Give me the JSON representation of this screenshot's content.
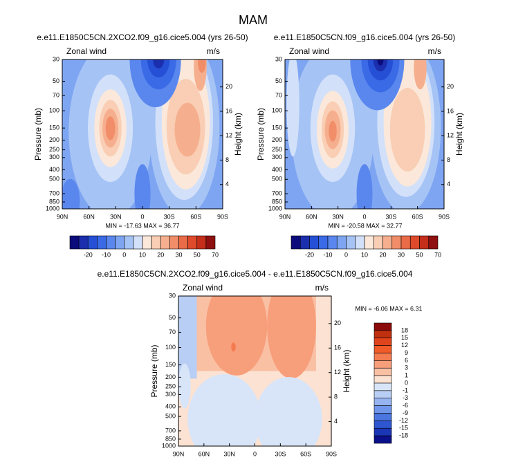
{
  "title": "MAM",
  "chart_data": [
    {
      "type": "contour",
      "title": "e.e11.E1850C5CN.2XCO2.f09_g16.cice5.004 (yrs 26-50)",
      "left_label": "Zonal wind",
      "right_label": "m/s",
      "ylabel": "Pressure (mb)",
      "y2label": "Height (km)",
      "stats_text": "MIN = -17.63  MAX = 36.77",
      "xlim": [
        90,
        -90
      ],
      "xticks": [
        {
          "value": 90,
          "label": "90N"
        },
        {
          "value": 60,
          "label": "60N"
        },
        {
          "value": 30,
          "label": "30N"
        },
        0,
        {
          "value": -30,
          "label": "30S"
        },
        {
          "value": -60,
          "label": "60S"
        },
        {
          "value": -90,
          "label": "90S"
        }
      ],
      "ylim": [
        1000,
        30
      ],
      "log_y": true,
      "yticks": [
        30,
        50,
        70,
        100,
        150,
        200,
        250,
        300,
        400,
        500,
        700,
        850,
        1000
      ],
      "y2lim": [
        0,
        24.5
      ],
      "y2ticks": [
        4,
        8,
        12,
        16,
        20
      ],
      "colorbar": {
        "orientation": "horizontal",
        "colors": [
          "#0b0b7c",
          "#1b2fae",
          "#2550d6",
          "#3a6ae6",
          "#5a87ee",
          "#7ea5f2",
          "#a6c3f5",
          "#d2e1f9",
          "#fbe8da",
          "#f9ceb4",
          "#f6af8e",
          "#f18e69",
          "#ea6b47",
          "#de4a2b",
          "#c42e1b",
          "#8e1010"
        ],
        "labels": [
          -20,
          -10,
          0,
          10,
          20,
          30,
          50,
          70
        ]
      }
    },
    {
      "type": "contour",
      "title": "e.e11.E1850C5CN.f09_g16.cice5.004 (yrs 26-50)",
      "left_label": "Zonal wind",
      "right_label": "m/s",
      "ylabel": "Pressure (mb)",
      "y2label": "Height (km)",
      "stats_text": "MIN = -20.58  MAX = 32.77",
      "xlim": [
        90,
        -90
      ],
      "xticks": [
        {
          "value": 90,
          "label": "90N"
        },
        {
          "value": 60,
          "label": "60N"
        },
        {
          "value": 30,
          "label": "30N"
        },
        0,
        {
          "value": -30,
          "label": "30S"
        },
        {
          "value": -60,
          "label": "60S"
        },
        {
          "value": -90,
          "label": "90S"
        }
      ],
      "ylim": [
        1000,
        30
      ],
      "log_y": true,
      "yticks": [
        30,
        50,
        70,
        100,
        150,
        200,
        250,
        300,
        400,
        500,
        700,
        850,
        1000
      ],
      "y2lim": [
        0,
        24.5
      ],
      "y2ticks": [
        4,
        8,
        12,
        16,
        20
      ],
      "colorbar": {
        "orientation": "horizontal",
        "colors": [
          "#0b0b7c",
          "#1b2fae",
          "#2550d6",
          "#3a6ae6",
          "#5a87ee",
          "#7ea5f2",
          "#a6c3f5",
          "#d2e1f9",
          "#fbe8da",
          "#f9ceb4",
          "#f6af8e",
          "#f18e69",
          "#ea6b47",
          "#de4a2b",
          "#c42e1b",
          "#8e1010"
        ],
        "labels": [
          -20,
          -10,
          0,
          10,
          20,
          30,
          50,
          70
        ]
      }
    },
    {
      "type": "contour",
      "title": "e.e11.E1850C5CN.2XCO2.f09_g16.cice5.004 - e.e11.E1850C5CN.f09_g16.cice5.004",
      "left_label": "Zonal wind",
      "right_label": "m/s",
      "ylabel": "Pressure (mb)",
      "y2label": "Height (km)",
      "stats_text": "MIN = -6.06  MAX =  6.31",
      "xlim": [
        90,
        -90
      ],
      "xticks": [
        {
          "value": 90,
          "label": "90N"
        },
        {
          "value": 60,
          "label": "60N"
        },
        {
          "value": 30,
          "label": "30N"
        },
        0,
        {
          "value": -30,
          "label": "30S"
        },
        {
          "value": -60,
          "label": "60S"
        },
        {
          "value": -90,
          "label": "90S"
        }
      ],
      "ylim": [
        1000,
        30
      ],
      "log_y": true,
      "yticks": [
        30,
        50,
        70,
        100,
        150,
        200,
        250,
        300,
        400,
        500,
        700,
        850,
        1000
      ],
      "y2lim": [
        0,
        24.5
      ],
      "y2ticks": [
        4,
        8,
        12,
        16,
        20
      ],
      "colorbar": {
        "orientation": "vertical",
        "colors": [
          "#8b0a0a",
          "#c0300f",
          "#e0441c",
          "#f05b29",
          "#f47c50",
          "#f79e7b",
          "#f9c0a4",
          "#fce2d2",
          "#d8e5f8",
          "#b8cef5",
          "#95b4f0",
          "#6f96ea",
          "#4b76e0",
          "#2e56d0",
          "#1a36b5",
          "#0a108a"
        ],
        "labels": [
          18,
          15,
          12,
          9,
          6,
          3,
          1,
          0,
          -1,
          -3,
          -6,
          -9,
          -12,
          -15,
          -18
        ]
      }
    }
  ]
}
